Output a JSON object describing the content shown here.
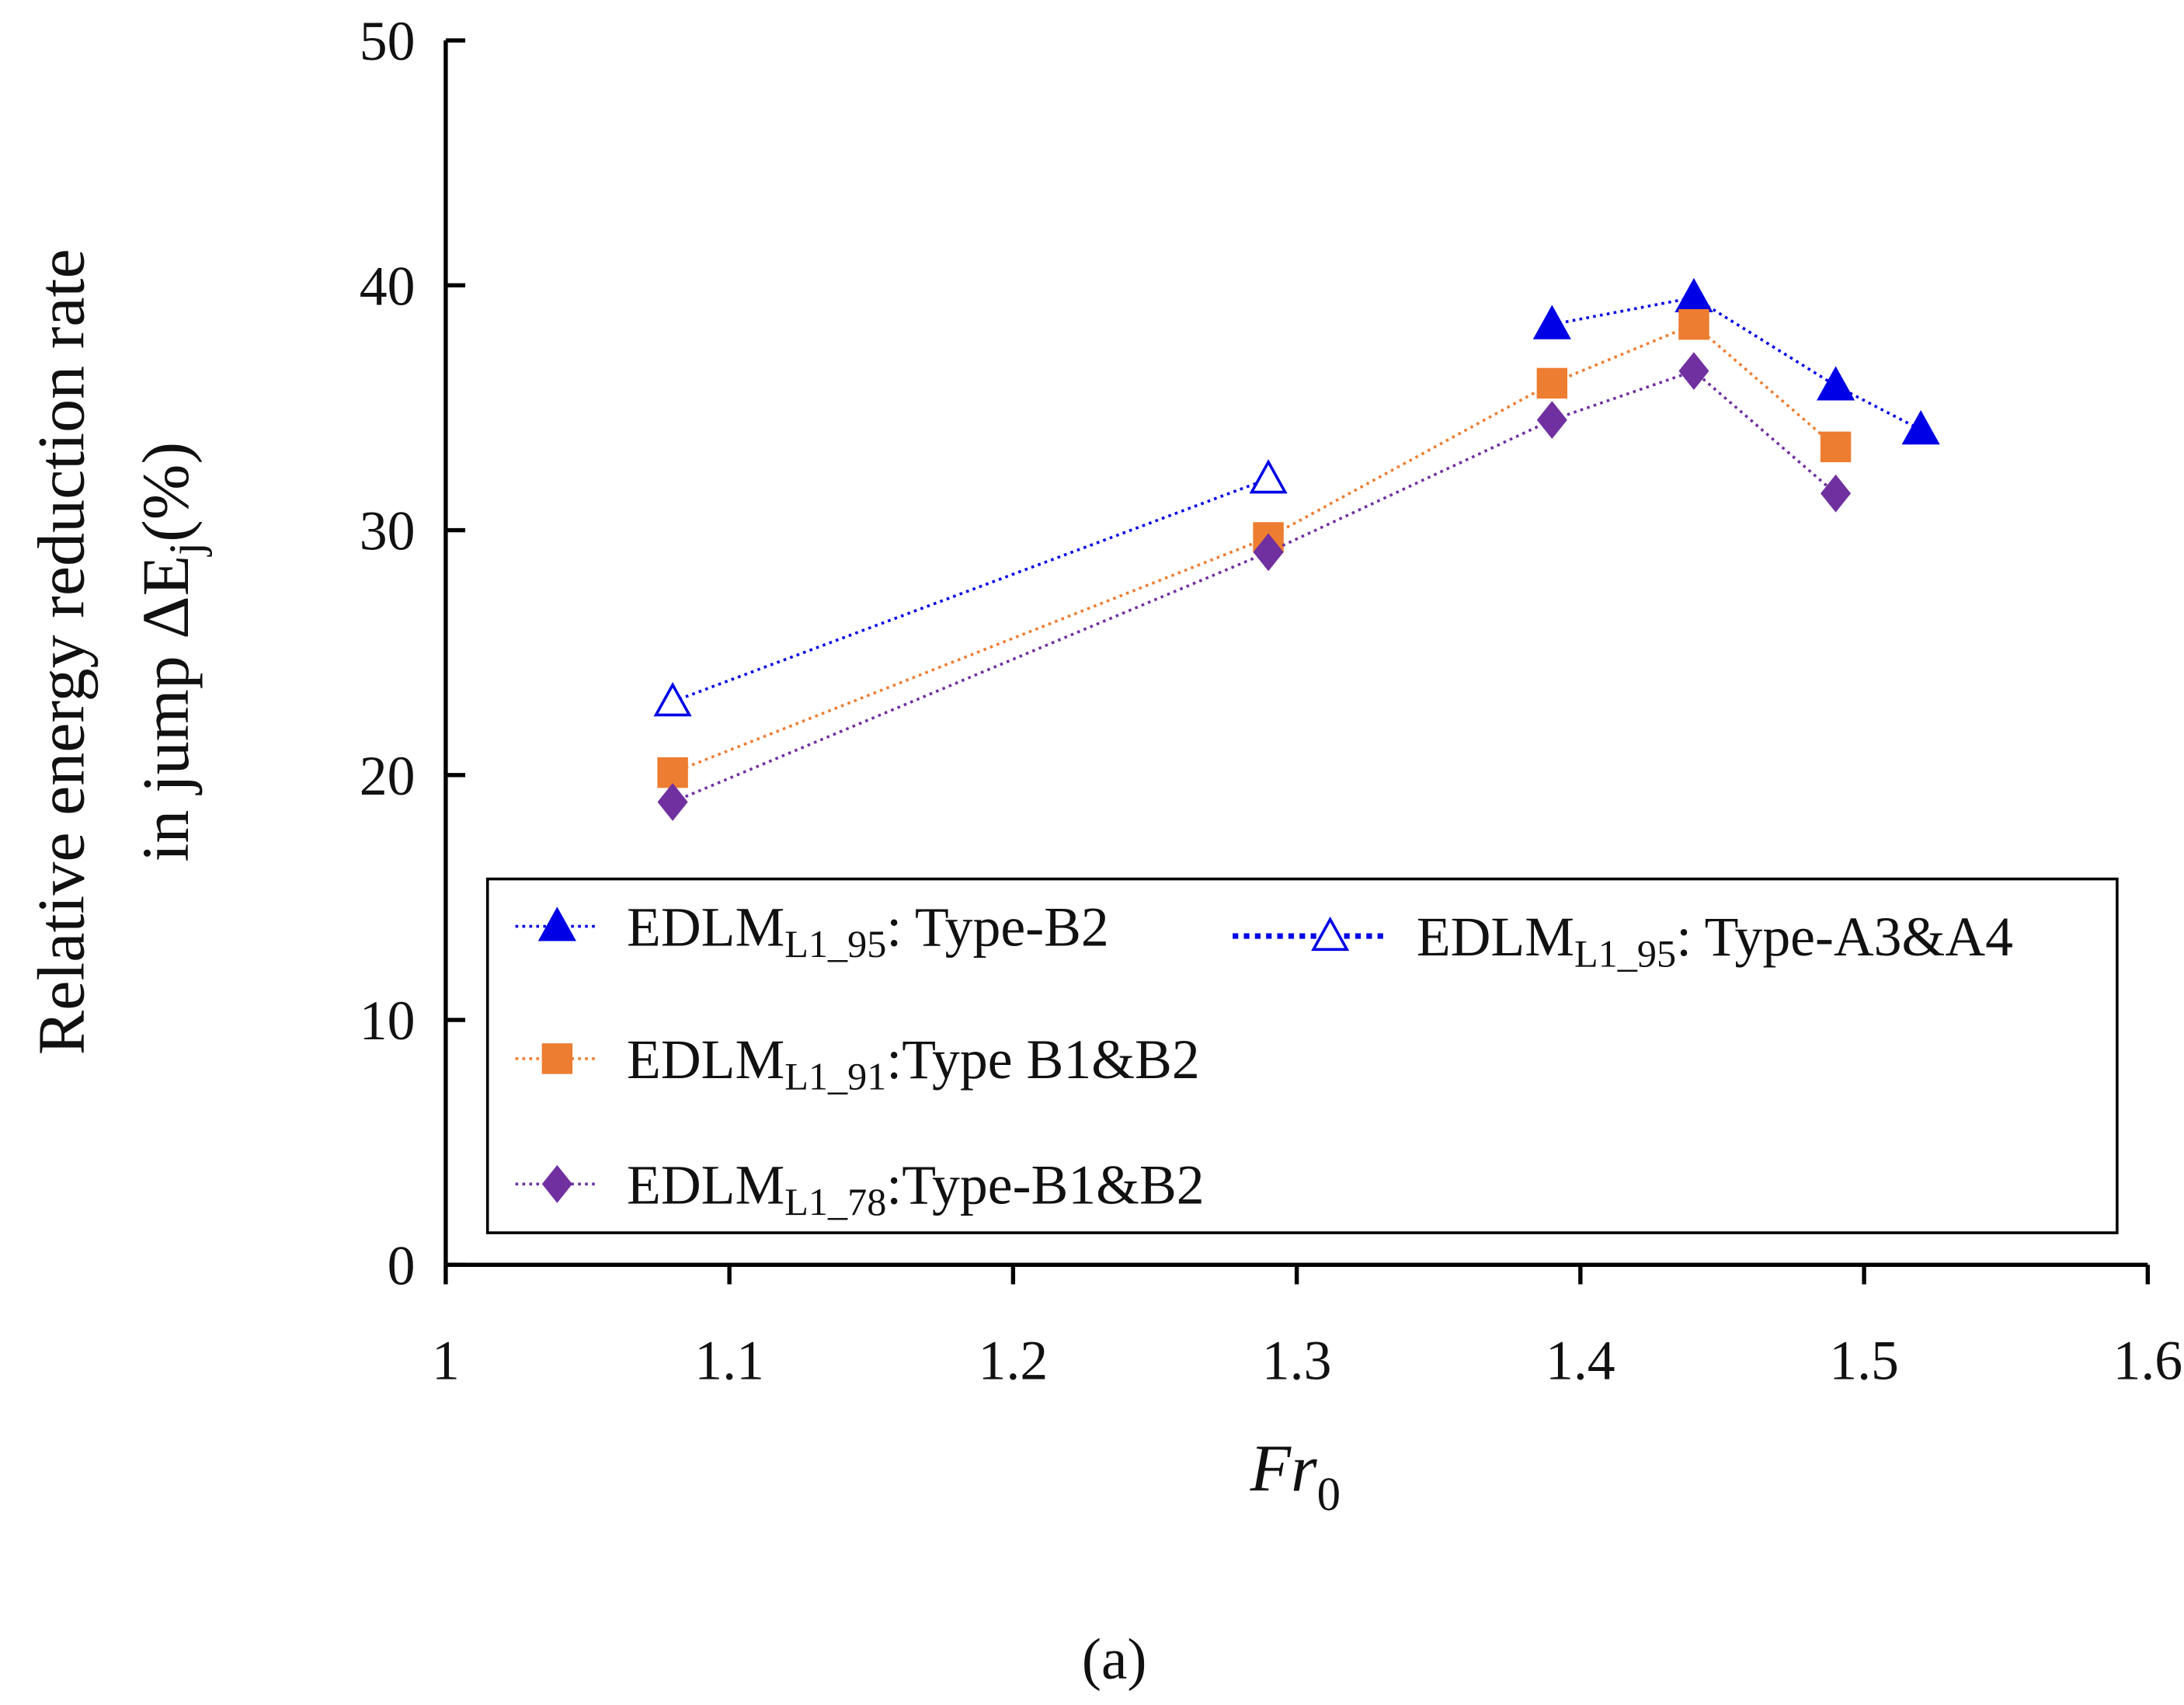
{
  "chart_data": {
    "type": "line",
    "xlabel": {
      "text": "Fr",
      "sub": "0"
    },
    "ylabel": {
      "line1": "Relative energy reduction rate",
      "line2": "in jump ΔE",
      "sub": "j",
      "suffix": "(%)"
    },
    "caption": "(a)",
    "xlim": [
      1,
      1.6
    ],
    "xticks": [
      1,
      1.1,
      1.2,
      1.3,
      1.4,
      1.5,
      1.6
    ],
    "ylim": [
      0,
      50
    ],
    "yticks": [
      0,
      10,
      20,
      30,
      40,
      50
    ],
    "series": [
      {
        "name": "EDLM",
        "sub": "L1_95",
        "suffix": ": Type-B2",
        "color": "#0000e6",
        "marker": "triangle",
        "filled": true,
        "x": [
          1.39,
          1.44,
          1.49,
          1.52
        ],
        "values": [
          38.4,
          39.5,
          35.9,
          34.1
        ]
      },
      {
        "name": "EDLM",
        "sub": "L1_95",
        "suffix": ": Type-A3&A4",
        "color": "#0000e6",
        "marker": "triangle",
        "filled": false,
        "x": [
          1.08,
          1.29
        ],
        "values": [
          23.0,
          32.1
        ]
      },
      {
        "name": "EDLM",
        "sub": "L1_91",
        "suffix": ":Type B1&B2",
        "color": "#ed7d31",
        "marker": "square",
        "filled": true,
        "x": [
          1.08,
          1.29,
          1.39,
          1.44,
          1.49
        ],
        "values": [
          20.1,
          29.7,
          36.0,
          38.4,
          33.4
        ]
      },
      {
        "name": "EDLM",
        "sub": "L1_78",
        "suffix": ":Type-B1&B2",
        "color": "#7030a0",
        "marker": "diamond",
        "filled": true,
        "x": [
          1.08,
          1.29,
          1.39,
          1.44,
          1.49
        ],
        "values": [
          18.9,
          29.1,
          34.5,
          36.5,
          31.5
        ]
      }
    ]
  }
}
